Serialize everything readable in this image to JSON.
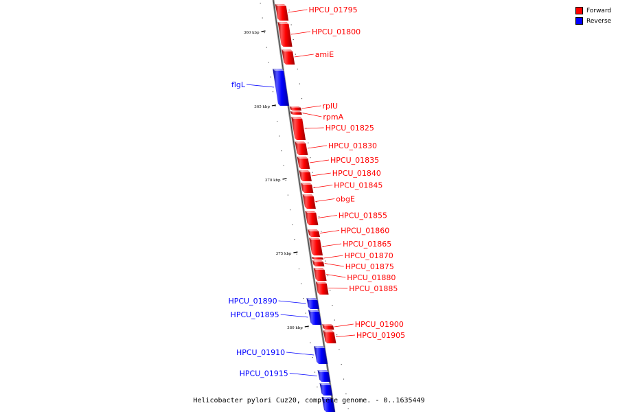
{
  "legend": {
    "forward_label": "Forward",
    "reverse_label": "Reverse",
    "forward_color": "#ff0000",
    "reverse_color": "#0000ff"
  },
  "caption": "Helicobacter pylori Cuz20, complete genome. - 0..1635449",
  "ticks": [
    {
      "label": "360 kbp",
      "y": 46
    },
    {
      "label": "365 kbp",
      "y": 154
    },
    {
      "label": "370 kbp",
      "y": 261
    },
    {
      "label": "375 kbp",
      "y": 368
    },
    {
      "label": "380 kbp",
      "y": 476
    }
  ],
  "genes": [
    {
      "label": "HPCU_01795",
      "strand": "forward",
      "y1": 6,
      "y2": 30
    },
    {
      "label": "HPCU_01800",
      "strand": "forward",
      "y1": 32,
      "y2": 68
    },
    {
      "label": "amiE",
      "strand": "forward",
      "y1": 72,
      "y2": 94
    },
    {
      "label": "flgL",
      "strand": "reverse",
      "y1": 100,
      "y2": 154
    },
    {
      "label": "rplU",
      "strand": "forward",
      "y1": 155,
      "y2": 161
    },
    {
      "label": "rpmA",
      "strand": "forward",
      "y1": 162,
      "y2": 167
    },
    {
      "label": "HPCU_01825",
      "strand": "forward",
      "y1": 170,
      "y2": 204
    },
    {
      "label": "HPCU_01830",
      "strand": "forward",
      "y1": 206,
      "y2": 226
    },
    {
      "label": "HPCU_01835",
      "strand": "forward",
      "y1": 228,
      "y2": 246
    },
    {
      "label": "HPCU_01840",
      "strand": "forward",
      "y1": 248,
      "y2": 264
    },
    {
      "label": "HPCU_01845",
      "strand": "forward",
      "y1": 266,
      "y2": 281
    },
    {
      "label": "obgE",
      "strand": "forward",
      "y1": 283,
      "y2": 304
    },
    {
      "label": "HPCU_01855",
      "strand": "forward",
      "y1": 307,
      "y2": 328
    },
    {
      "label": "HPCU_01860",
      "strand": "forward",
      "y1": 334,
      "y2": 345
    },
    {
      "label": "HPCU_01865",
      "strand": "forward",
      "y1": 346,
      "y2": 372
    },
    {
      "label": "HPCU_01870",
      "strand": "forward",
      "y1": 374,
      "y2": 378
    },
    {
      "label": "HPCU_01875",
      "strand": "forward",
      "y1": 379,
      "y2": 388
    },
    {
      "label": "HPCU_01880",
      "strand": "forward",
      "y1": 390,
      "y2": 409
    },
    {
      "label": "HPCU_01885",
      "strand": "forward",
      "y1": 410,
      "y2": 429
    },
    {
      "label": "HPCU_01890",
      "strand": "reverse",
      "y1": 434,
      "y2": 450
    },
    {
      "label": "HPCU_01895",
      "strand": "reverse",
      "y1": 451,
      "y2": 473
    },
    {
      "label": "HPCU_01900",
      "strand": "forward",
      "y1": 472,
      "y2": 480
    },
    {
      "label": "HPCU_01905",
      "strand": "forward",
      "y1": 481,
      "y2": 500
    },
    {
      "label": "HPCU_01910",
      "strand": "reverse",
      "y1": 504,
      "y2": 530
    },
    {
      "label": "HPCU_01915",
      "strand": "reverse",
      "y1": 539,
      "y2": 556
    },
    {
      "label": "",
      "strand": "reverse",
      "y1": 558,
      "y2": 576
    },
    {
      "label": "",
      "strand": "reverse",
      "y1": 578,
      "y2": 600
    }
  ]
}
